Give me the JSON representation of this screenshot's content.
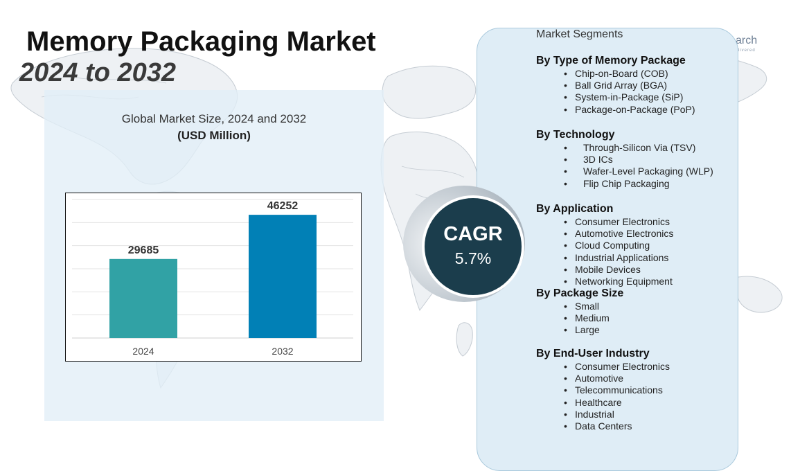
{
  "header": {
    "title": "Memory Packaging Market",
    "subtitle": "2024 to 2032",
    "brand_fragment": "arch",
    "brand_tagline": "livered"
  },
  "chart_data": {
    "type": "bar",
    "title": "Global Market Size, 2024 and 2032",
    "unit": "(USD Million)",
    "categories": [
      "2024",
      "2032"
    ],
    "values": [
      29685,
      46252
    ],
    "value_labels": [
      "29685",
      "46252"
    ],
    "bar_colors": [
      "#31a2a5",
      "#0180b6"
    ],
    "ylim": [
      0,
      52000
    ],
    "grid": true,
    "xlabel": "",
    "ylabel": ""
  },
  "cagr": {
    "label": "CAGR",
    "value": "5.7%"
  },
  "segments": {
    "title": "Market Segments",
    "groups": [
      {
        "heading": "By Type of Memory Package",
        "items": [
          "Chip-on-Board (COB)",
          "Ball Grid Array (BGA)",
          "System-in-Package (SiP)",
          "Package-on-Package (PoP)"
        ]
      },
      {
        "heading": "By Technology",
        "items": [
          "Through-Silicon Via (TSV)",
          "3D ICs",
          "Wafer-Level Packaging (WLP)",
          "Flip Chip Packaging"
        ]
      },
      {
        "heading": "By Application",
        "items": [
          "Consumer Electronics",
          "Automotive Electronics",
          "Cloud Computing",
          "Industrial Applications",
          "Mobile Devices",
          "Networking Equipment"
        ]
      },
      {
        "heading": "By Package Size",
        "items": [
          "Small",
          "Medium",
          "Large"
        ]
      },
      {
        "heading": "By End-User Industry",
        "items": [
          "Consumer Electronics",
          "Automotive",
          "Telecommunications",
          "Healthcare",
          "Industrial",
          "Data Centers"
        ]
      }
    ]
  },
  "colors": {
    "accent_dark": "#1b3d4c",
    "panel_bg": "#dfedf6"
  }
}
